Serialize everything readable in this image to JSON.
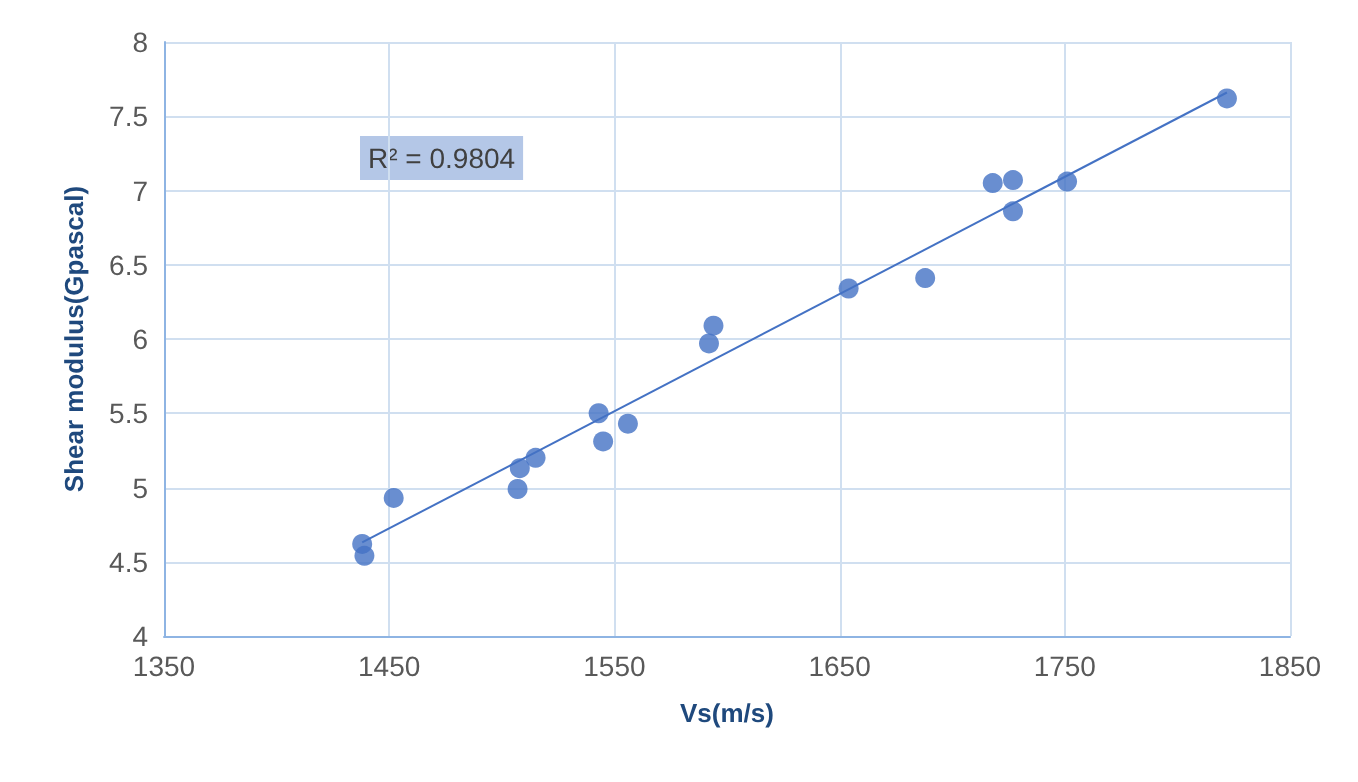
{
  "chart_data": {
    "type": "scatter",
    "xlabel": "Vs(m/s)",
    "ylabel": "Shear modulus(Gpascal)",
    "xlim": [
      1350,
      1850
    ],
    "xticks": [
      1350,
      1450,
      1550,
      1650,
      1750,
      1850
    ],
    "ylim": [
      4,
      8
    ],
    "yticks": [
      4,
      4.5,
      5,
      5.5,
      6,
      6.5,
      7,
      7.5,
      8
    ],
    "grid": true,
    "marker": "circle",
    "annotations": [
      "R² = 0.9804"
    ],
    "series": [
      {
        "color": "#4472c4",
        "x": [
          1438,
          1439,
          1452,
          1507,
          1508,
          1515,
          1543,
          1545,
          1556,
          1592,
          1594,
          1654,
          1688,
          1718,
          1727,
          1727,
          1751,
          1822
        ],
        "values": [
          4.62,
          4.54,
          4.93,
          4.99,
          5.13,
          5.2,
          5.5,
          5.31,
          5.43,
          5.97,
          6.09,
          6.34,
          6.41,
          7.05,
          7.07,
          6.86,
          7.06,
          7.62
        ]
      },
      {
        "type": "line",
        "color": "#4472c4",
        "marker": "none",
        "x": [
          1438,
          1822
        ],
        "values": [
          4.63,
          7.66
        ]
      }
    ]
  }
}
